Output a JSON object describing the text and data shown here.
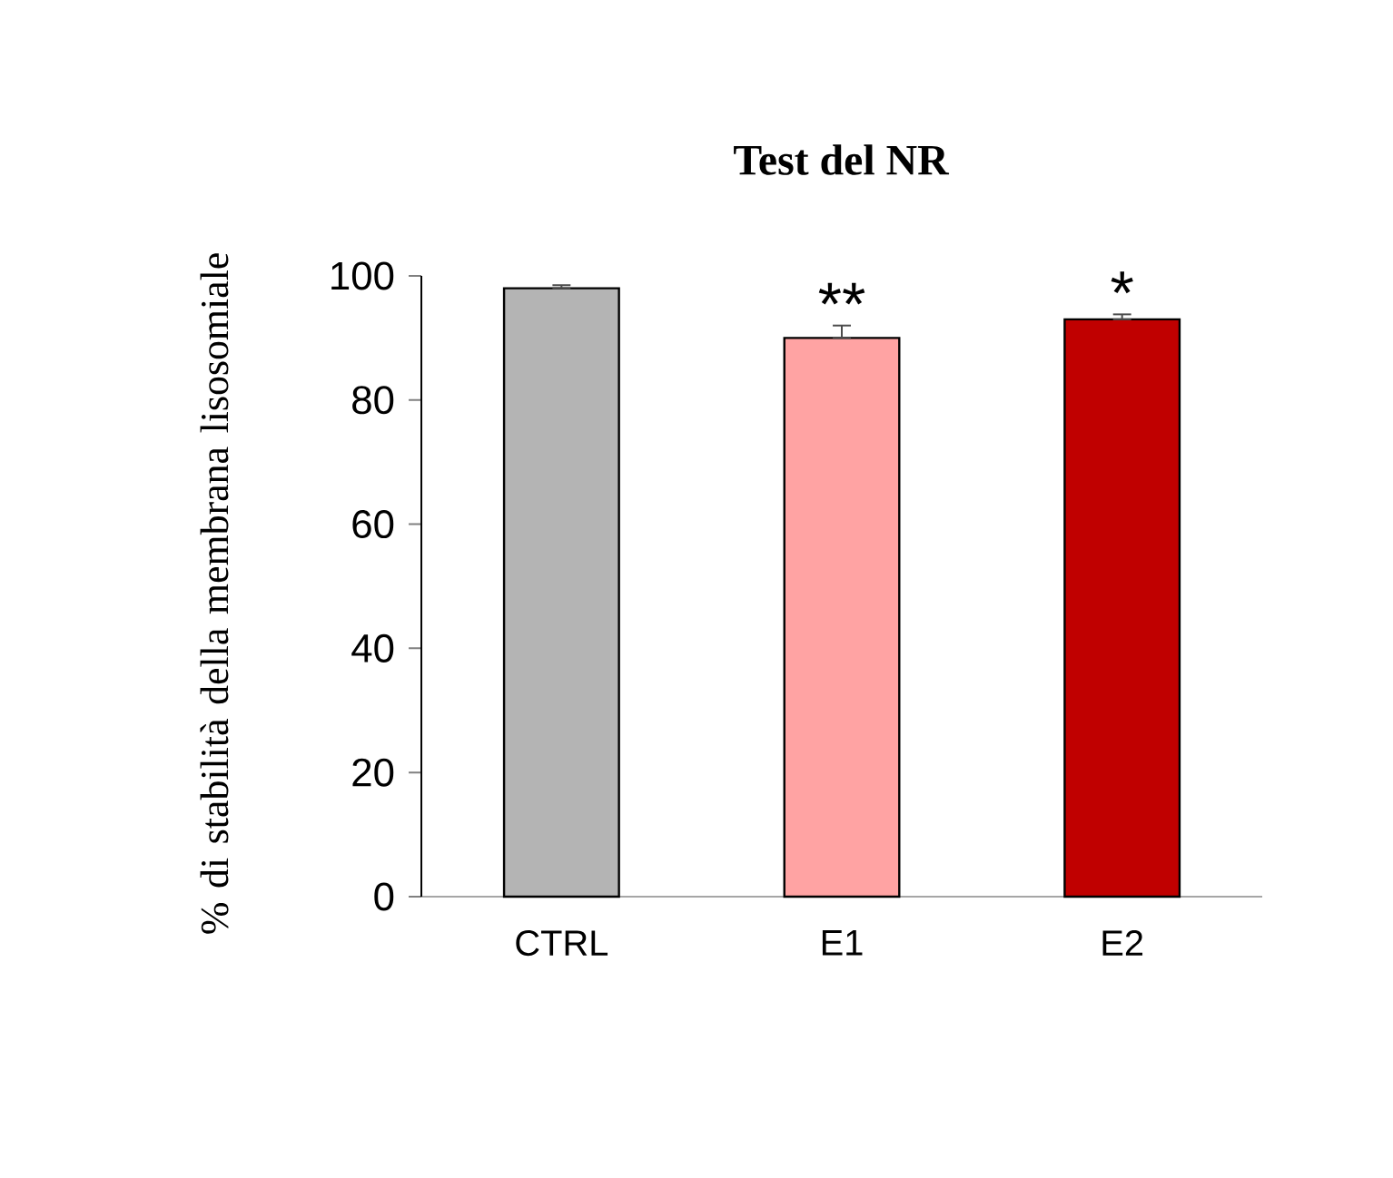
{
  "chart_data": {
    "type": "bar",
    "title": "Test del NR",
    "ylabel": "% di stabilità della membrana lisosomiale",
    "categories": [
      "CTRL",
      "E1",
      "E2"
    ],
    "values": [
      98,
      90,
      93
    ],
    "colors": [
      "#b4b4b4",
      "#ffa3a3",
      "#c00000"
    ],
    "errors": [
      [
        98,
        98.5
      ],
      [
        90,
        92
      ],
      [
        93,
        93.8
      ]
    ],
    "annotations": [
      {
        "text": "**",
        "x": "E1",
        "y": 92
      },
      {
        "text": "*",
        "x": "E2",
        "y": 93.8
      }
    ],
    "ylim": [
      0,
      100
    ],
    "yticks": [
      0,
      20,
      40,
      60,
      80,
      100
    ],
    "grid": false
  }
}
